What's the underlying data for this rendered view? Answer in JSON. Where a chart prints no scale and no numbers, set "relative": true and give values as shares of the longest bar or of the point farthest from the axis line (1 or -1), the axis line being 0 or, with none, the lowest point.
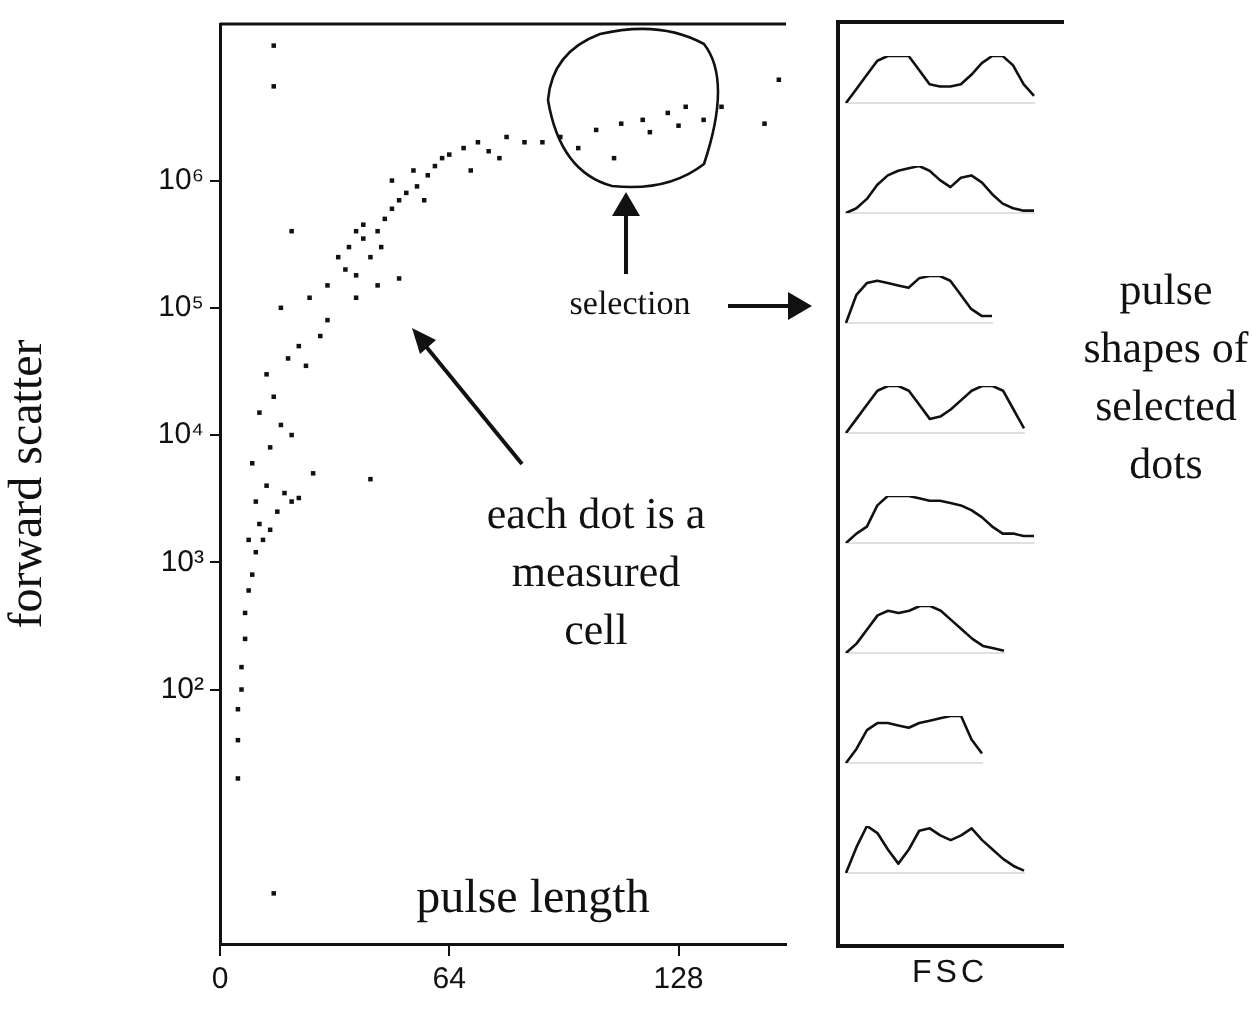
{
  "chart_data": [
    {
      "type": "scatter",
      "xlabel": "pulse length",
      "ylabel": "forward scatter",
      "log": "y",
      "grid": false,
      "legend": false,
      "marker": "square",
      "xlim": [
        0,
        158
      ],
      "xticks": [
        0,
        64,
        128
      ],
      "ylim": [
        1,
        17000000
      ],
      "yticks": [
        {
          "value": 100,
          "label": "10²"
        },
        {
          "value": 1000,
          "label": "10³"
        },
        {
          "value": 10000,
          "label": "10⁴"
        },
        {
          "value": 100000,
          "label": "10⁵"
        },
        {
          "value": 1000000,
          "label": "10⁶"
        }
      ],
      "annotations": [
        "each dot is a measured cell",
        "selection",
        "pulse shapes of selected dots"
      ],
      "series": [
        {
          "color": "#111111",
          "x": [
            5,
            5,
            5,
            6,
            6,
            7,
            7,
            8,
            9,
            10,
            8,
            11,
            12,
            14,
            16,
            10,
            13,
            18,
            20,
            22,
            26,
            42,
            9,
            14,
            17,
            11,
            20,
            15,
            13,
            19,
            22,
            24,
            28,
            30,
            17,
            25,
            30,
            35,
            38,
            33,
            36,
            40,
            42,
            44,
            46,
            48,
            40,
            38,
            45,
            50,
            52,
            55,
            48,
            54,
            58,
            60,
            62,
            57,
            64,
            68,
            72,
            75,
            80,
            78,
            85,
            70,
            44,
            50,
            20,
            38,
            90,
            95,
            100,
            105,
            110,
            112,
            118,
            120,
            125,
            128,
            130,
            135,
            140,
            156,
            152,
            15,
            15,
            15
          ],
          "values": [
            20,
            40,
            70,
            100,
            150,
            250,
            400,
            600,
            800,
            1200,
            1500,
            2000,
            1500,
            1800,
            2500,
            3000,
            4000,
            3500,
            3000,
            3200,
            5000,
            4500,
            6000,
            8000,
            12000,
            15000,
            10000,
            20000,
            30000,
            40000,
            50000,
            35000,
            60000,
            80000,
            100000,
            120000,
            150000,
            200000,
            180000,
            250000,
            300000,
            350000,
            250000,
            400000,
            500000,
            600000,
            450000,
            400000,
            300000,
            700000,
            800000,
            900000,
            1000000,
            1200000,
            1100000,
            1300000,
            1500000,
            700000,
            1600000,
            1800000,
            2000000,
            1700000,
            2200000,
            1500000,
            2000000,
            1200000,
            150000,
            170000,
            400000,
            120000,
            2000000,
            2200000,
            1800000,
            2500000,
            1500000,
            2800000,
            3000000,
            2400000,
            3400000,
            2700000,
            3800000,
            3000000,
            3800000,
            6200000,
            2800000,
            11500000,
            5500000,
            2.5
          ]
        }
      ]
    },
    {
      "type": "line",
      "relative": true,
      "legend": false,
      "categories": [
        null,
        null,
        null,
        null,
        null,
        null,
        null,
        null,
        null,
        null,
        null,
        null,
        null,
        null,
        null,
        null,
        null,
        null,
        null
      ],
      "series": [
        {
          "color": "#111111",
          "values": [
            0,
            0.3,
            0.6,
            0.9,
            1,
            1,
            1,
            0.7,
            0.4,
            0.35,
            0.35,
            0.4,
            0.6,
            0.85,
            1,
            1,
            0.8,
            0.4,
            0.15
          ]
        }
      ]
    },
    {
      "type": "line",
      "relative": true,
      "legend": false,
      "categories": [
        null,
        null,
        null,
        null,
        null,
        null,
        null,
        null,
        null,
        null,
        null,
        null,
        null,
        null,
        null,
        null,
        null,
        null,
        null
      ],
      "series": [
        {
          "color": "#111111",
          "values": [
            0,
            0.1,
            0.3,
            0.6,
            0.8,
            0.9,
            0.95,
            1,
            0.9,
            0.7,
            0.55,
            0.75,
            0.8,
            0.65,
            0.4,
            0.2,
            0.1,
            0.05,
            0.05
          ]
        }
      ]
    },
    {
      "type": "line",
      "relative": true,
      "legend": false,
      "categories": [
        null,
        null,
        null,
        null,
        null,
        null,
        null,
        null,
        null,
        null,
        null,
        null,
        null,
        null,
        null
      ],
      "series": [
        {
          "color": "#111111",
          "values": [
            0,
            0.6,
            0.85,
            0.9,
            0.85,
            0.8,
            0.75,
            0.95,
            1,
            1,
            0.9,
            0.6,
            0.3,
            0.15,
            0.15
          ]
        }
      ]
    },
    {
      "type": "line",
      "relative": true,
      "legend": false,
      "categories": [
        null,
        null,
        null,
        null,
        null,
        null,
        null,
        null,
        null,
        null,
        null,
        null,
        null,
        null,
        null,
        null,
        null,
        null
      ],
      "series": [
        {
          "color": "#111111",
          "values": [
            0,
            0.3,
            0.6,
            0.9,
            1,
            1,
            0.9,
            0.6,
            0.3,
            0.35,
            0.5,
            0.7,
            0.9,
            1,
            1,
            0.9,
            0.5,
            0.1
          ]
        }
      ]
    },
    {
      "type": "line",
      "relative": true,
      "legend": false,
      "categories": [
        null,
        null,
        null,
        null,
        null,
        null,
        null,
        null,
        null,
        null,
        null,
        null,
        null,
        null,
        null,
        null,
        null,
        null,
        null
      ],
      "series": [
        {
          "color": "#111111",
          "values": [
            0,
            0.2,
            0.35,
            0.8,
            1,
            1,
            1,
            0.95,
            0.9,
            0.9,
            0.85,
            0.8,
            0.7,
            0.55,
            0.35,
            0.2,
            0.2,
            0.15,
            0.15
          ]
        }
      ]
    },
    {
      "type": "line",
      "relative": true,
      "legend": false,
      "categories": [
        null,
        null,
        null,
        null,
        null,
        null,
        null,
        null,
        null,
        null,
        null,
        null,
        null,
        null,
        null,
        null
      ],
      "series": [
        {
          "color": "#111111",
          "values": [
            0,
            0.2,
            0.5,
            0.8,
            0.9,
            0.85,
            0.9,
            1,
            1,
            0.9,
            0.7,
            0.5,
            0.3,
            0.15,
            0.1,
            0.05
          ]
        }
      ]
    },
    {
      "type": "line",
      "relative": true,
      "legend": false,
      "categories": [
        null,
        null,
        null,
        null,
        null,
        null,
        null,
        null,
        null,
        null,
        null,
        null,
        null,
        null
      ],
      "series": [
        {
          "color": "#111111",
          "values": [
            0,
            0.3,
            0.7,
            0.85,
            0.85,
            0.8,
            0.75,
            0.85,
            0.9,
            0.95,
            1,
            1,
            0.5,
            0.2
          ]
        }
      ]
    },
    {
      "type": "line",
      "relative": true,
      "legend": false,
      "xlabel": "FSC",
      "categories": [
        null,
        null,
        null,
        null,
        null,
        null,
        null,
        null,
        null,
        null,
        null,
        null,
        null,
        null,
        null,
        null,
        null,
        null
      ],
      "series": [
        {
          "color": "#111111",
          "values": [
            0,
            0.55,
            1,
            0.85,
            0.5,
            0.2,
            0.5,
            0.9,
            0.95,
            0.8,
            0.7,
            0.8,
            0.95,
            0.7,
            0.5,
            0.3,
            0.15,
            0.05
          ]
        }
      ]
    }
  ]
}
